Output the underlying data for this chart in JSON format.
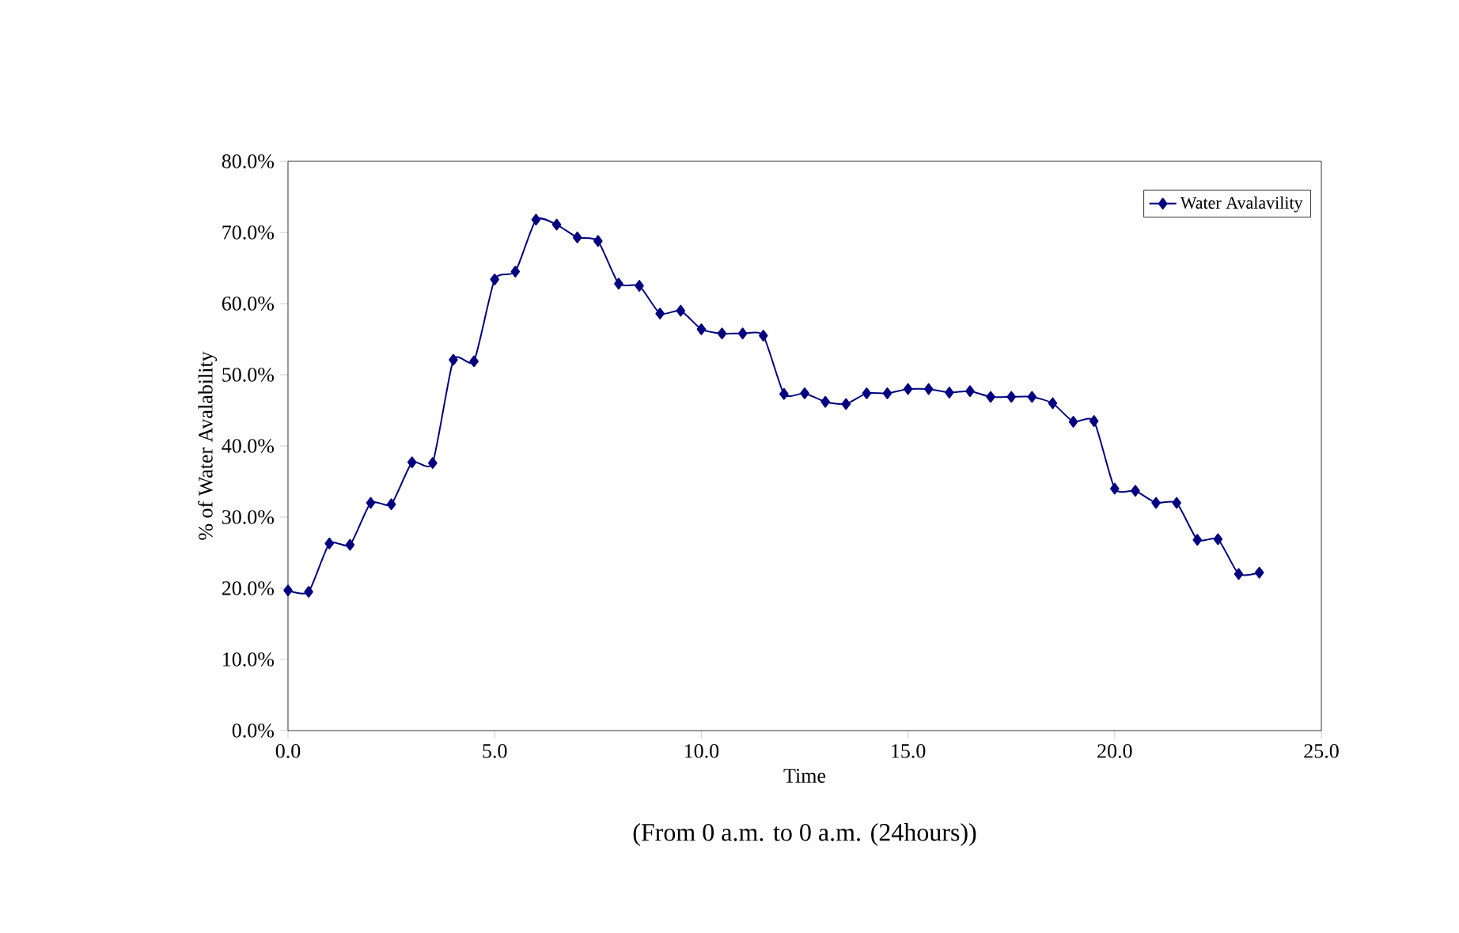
{
  "chart_data": {
    "type": "line",
    "xlabel": "Time",
    "ylabel": "% of Water Avalability",
    "annotations": [
      "(From 0 a.m. to 0 a.m. (24hours))"
    ],
    "x": [
      0,
      0.5,
      1,
      1.5,
      2,
      2.5,
      3,
      3.5,
      4,
      4.5,
      5,
      5.5,
      6,
      6.5,
      7,
      7.5,
      8,
      8.5,
      9,
      9.5,
      10,
      10.5,
      11,
      11.5,
      12,
      12.5,
      13,
      13.5,
      14,
      14.5,
      15,
      15.5,
      16,
      16.5,
      17,
      17.5,
      18,
      18.5,
      19,
      19.5,
      20,
      20.5,
      21,
      21.5,
      22,
      22.5,
      23,
      23.5
    ],
    "series": [
      {
        "name": "Water Avalavility",
        "color": "#000080",
        "values": [
          19.7,
          19.5,
          26.3,
          26.1,
          32,
          31.8,
          37.7,
          37.6,
          52.1,
          51.9,
          63.4,
          64.5,
          71.8,
          71.1,
          69.3,
          68.8,
          62.8,
          62.5,
          58.6,
          59,
          56.4,
          55.8,
          55.8,
          55.5,
          47.3,
          47.4,
          46.2,
          45.9,
          47.4,
          47.4,
          48,
          48,
          47.5,
          47.7,
          46.9,
          46.9,
          46.9,
          46,
          43.4,
          43.5,
          34,
          33.7,
          32,
          32,
          26.8,
          26.9,
          22,
          22.2
        ]
      }
    ],
    "xlim": [
      0,
      25
    ],
    "xticks": [
      {
        "value": 0,
        "label": "0.0"
      },
      {
        "value": 5,
        "label": "5.0"
      },
      {
        "value": 10,
        "label": "10.0"
      },
      {
        "value": 15,
        "label": "15.0"
      },
      {
        "value": 20,
        "label": "20.0"
      },
      {
        "value": 25,
        "label": "25.0"
      }
    ],
    "ylim": [
      0,
      80
    ],
    "yticks": [
      {
        "value": 0,
        "label": "0.0%"
      },
      {
        "value": 10,
        "label": "10.0%"
      },
      {
        "value": 20,
        "label": "20.0%"
      },
      {
        "value": 30,
        "label": "30.0%"
      },
      {
        "value": 40,
        "label": "40.0%"
      },
      {
        "value": 50,
        "label": "50.0%"
      },
      {
        "value": 60,
        "label": "60.0%"
      },
      {
        "value": 70,
        "label": "70.0%"
      },
      {
        "value": 80,
        "label": "80.0%"
      }
    ],
    "grid": false,
    "legend": "top right",
    "marker": "diamond",
    "line_style": "solid"
  }
}
